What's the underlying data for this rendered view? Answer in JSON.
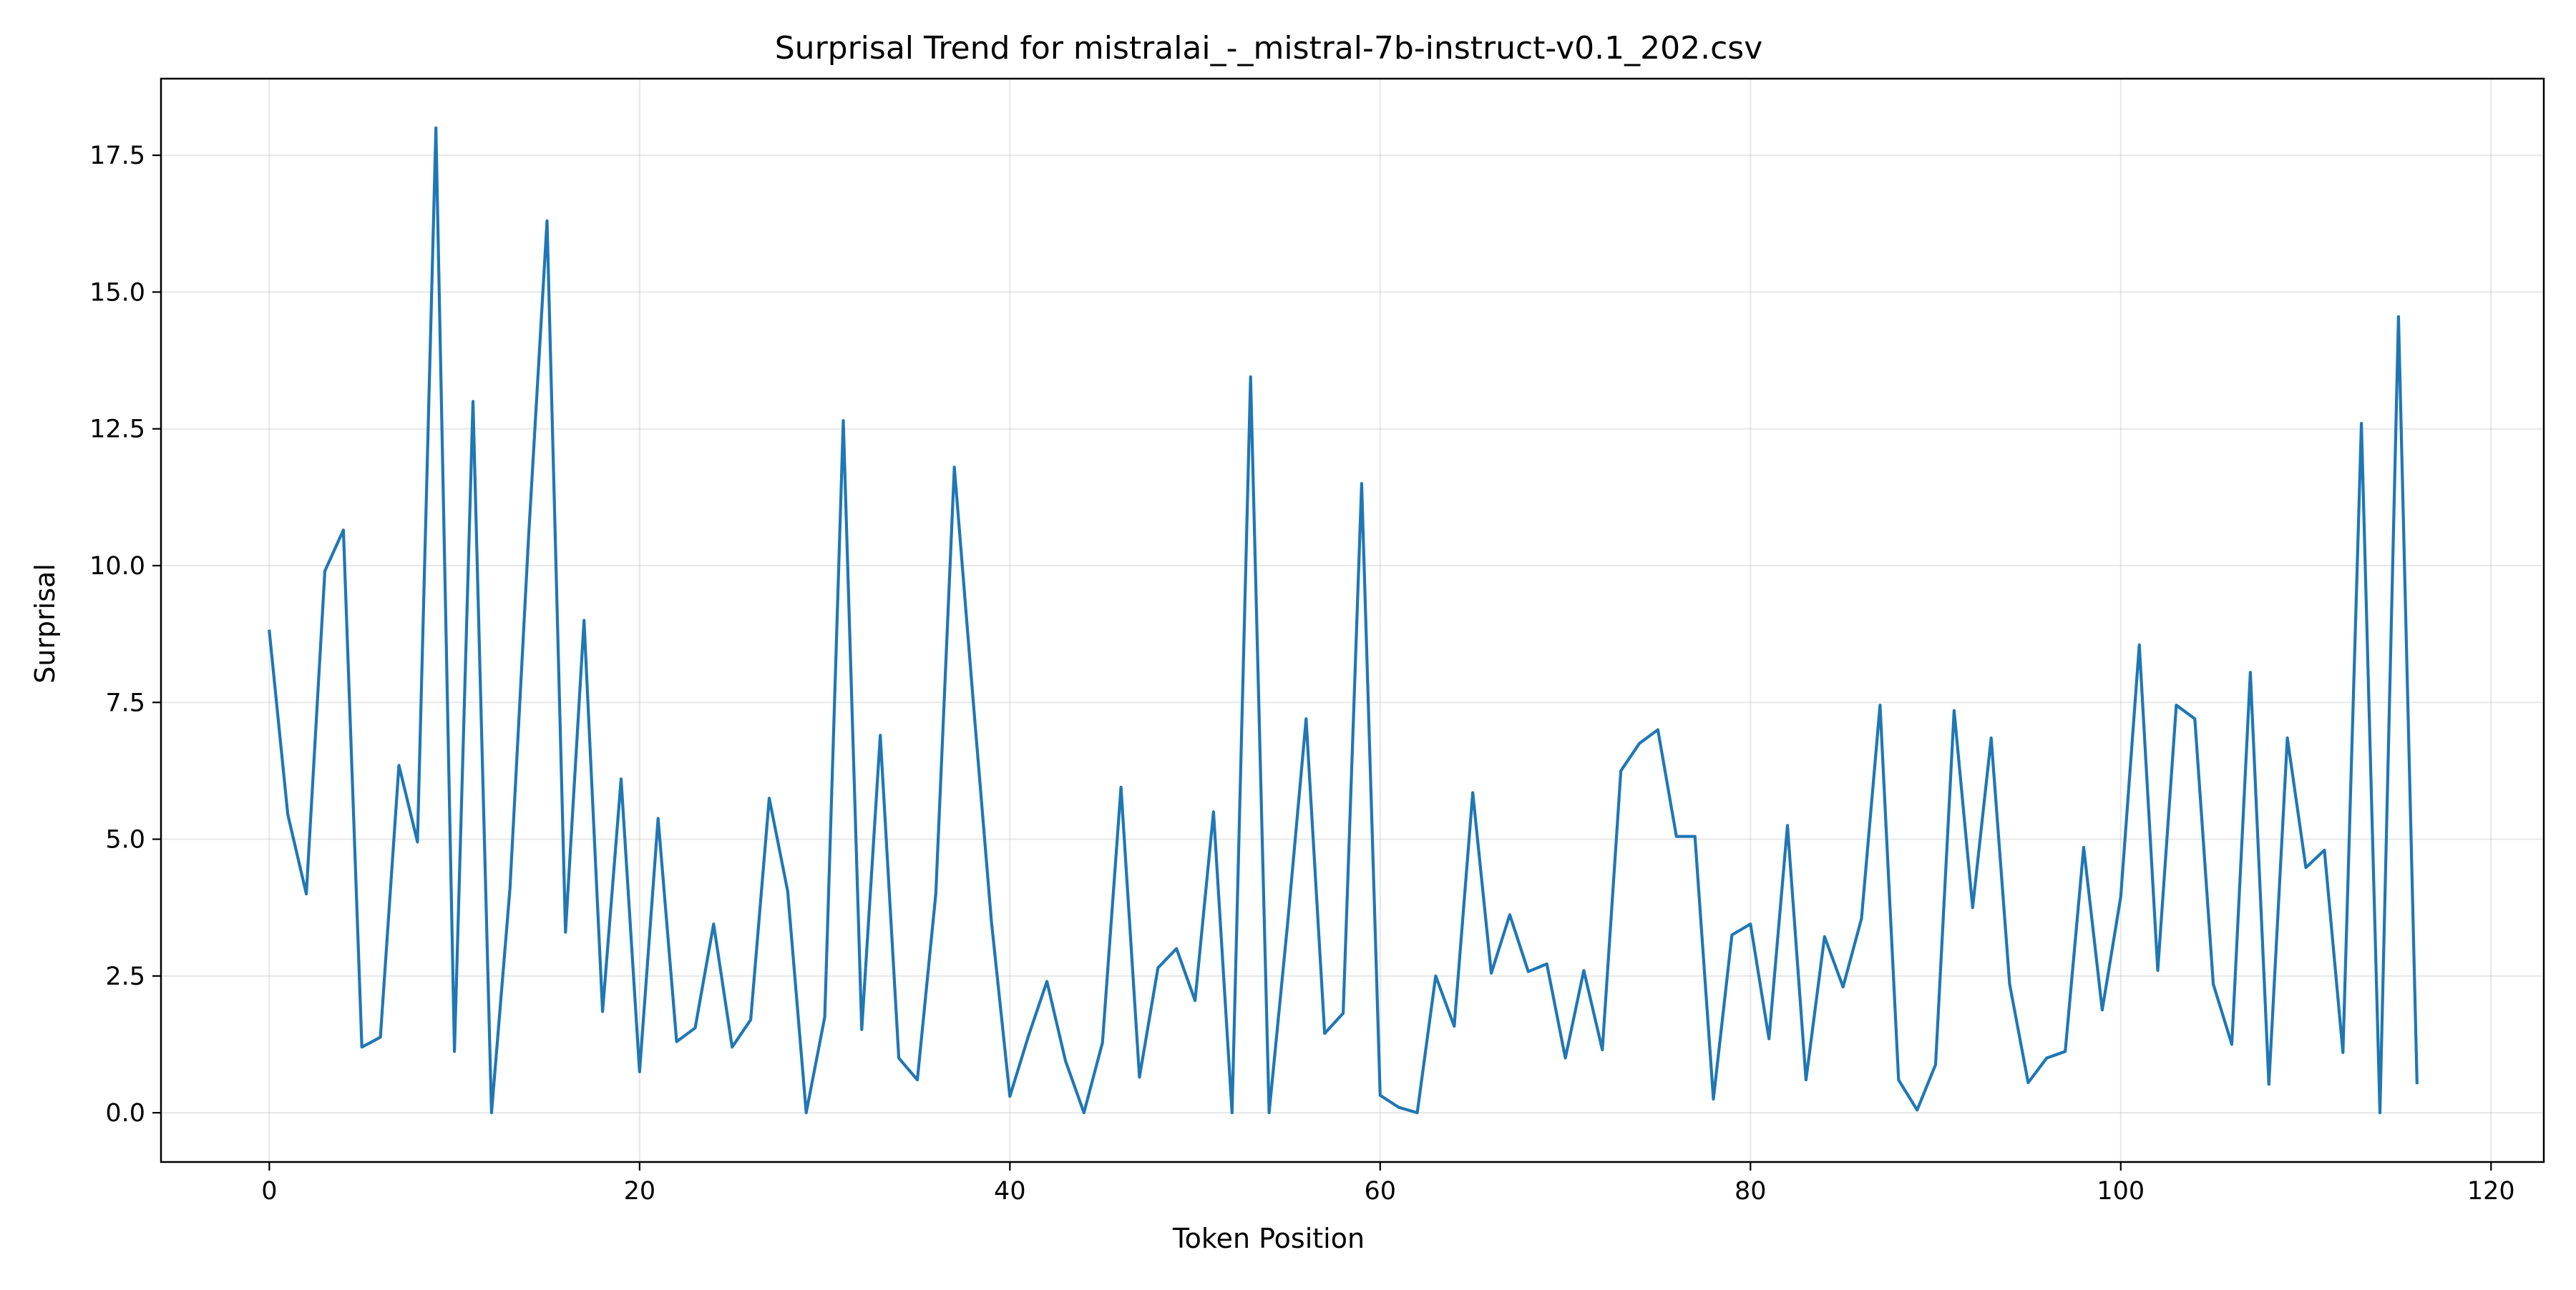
{
  "chart_data": {
    "type": "line",
    "title": "Surprisal Trend for mistralai_-_mistral-7b-instruct-v0.1_202.csv",
    "xlabel": "Token Position",
    "ylabel": "Surprisal",
    "xlim": [
      -5.85,
      122.85
    ],
    "ylim": [
      -0.9,
      18.9
    ],
    "x_ticks": [
      0,
      20,
      40,
      60,
      80,
      100,
      120
    ],
    "x_tick_labels": [
      "0",
      "20",
      "40",
      "60",
      "80",
      "100",
      "120"
    ],
    "y_ticks": [
      0,
      2.5,
      5,
      7.5,
      10,
      12.5,
      15,
      17.5
    ],
    "y_tick_labels": [
      "0.0",
      "2.5",
      "5.0",
      "7.5",
      "10.0",
      "12.5",
      "15.0",
      "17.5"
    ],
    "grid": true,
    "legend": "none",
    "line_color": "#1f77b4",
    "series": [
      {
        "x": [
          0,
          1,
          2,
          3,
          4,
          5,
          6,
          7,
          8,
          9,
          10,
          11,
          12,
          13,
          14,
          15,
          16,
          17,
          18,
          19,
          20,
          21,
          22,
          23,
          24,
          25,
          26,
          27,
          28,
          29,
          30,
          31,
          32,
          33,
          34,
          35,
          36,
          37,
          38,
          39,
          40,
          41,
          42,
          43,
          44,
          45,
          46,
          47,
          48,
          49,
          50,
          51,
          52,
          53,
          54,
          55,
          56,
          57,
          58,
          59,
          60,
          61,
          62,
          63,
          64,
          65,
          66,
          67,
          68,
          69,
          70,
          71,
          72,
          73,
          74,
          75,
          76,
          77,
          78,
          79,
          80,
          81,
          82,
          83,
          84,
          85,
          86,
          87,
          88,
          89,
          90,
          91,
          92,
          93,
          94,
          95,
          96,
          97,
          98,
          99,
          100,
          101,
          102,
          103,
          104,
          105,
          106,
          107,
          108,
          109,
          110,
          111,
          112,
          113,
          114,
          115,
          116
        ],
        "y": [
          8.8,
          5.45,
          4.0,
          9.9,
          10.65,
          1.2,
          1.38,
          6.35,
          4.95,
          18.0,
          1.12,
          13.0,
          0.0,
          4.1,
          10.5,
          16.3,
          3.3,
          9.0,
          1.85,
          6.1,
          0.75,
          5.38,
          1.3,
          1.55,
          3.45,
          1.2,
          1.7,
          5.75,
          4.05,
          0.0,
          1.75,
          12.65,
          1.52,
          6.9,
          1.0,
          0.6,
          4.0,
          11.8,
          7.6,
          3.5,
          0.3,
          1.4,
          2.4,
          0.95,
          0.0,
          1.28,
          5.95,
          0.65,
          2.65,
          3.0,
          2.05,
          5.5,
          0.0,
          13.45,
          0.0,
          3.45,
          7.2,
          1.45,
          1.82,
          11.5,
          0.32,
          0.1,
          0.0,
          2.5,
          1.58,
          5.85,
          2.55,
          3.62,
          2.58,
          2.72,
          1.0,
          2.6,
          1.15,
          6.25,
          6.75,
          7.0,
          5.05,
          5.05,
          0.25,
          3.25,
          3.45,
          1.35,
          5.25,
          0.6,
          3.22,
          2.3,
          3.55,
          7.45,
          0.6,
          0.05,
          0.88,
          7.35,
          3.75,
          6.85,
          2.35,
          0.55,
          1.0,
          1.12,
          4.85,
          1.88,
          3.95,
          8.55,
          2.6,
          7.45,
          7.2,
          2.35,
          1.25,
          8.05,
          0.52,
          6.85,
          4.48,
          4.8,
          1.1,
          12.6,
          0.0,
          14.55,
          0.55
        ]
      }
    ]
  }
}
